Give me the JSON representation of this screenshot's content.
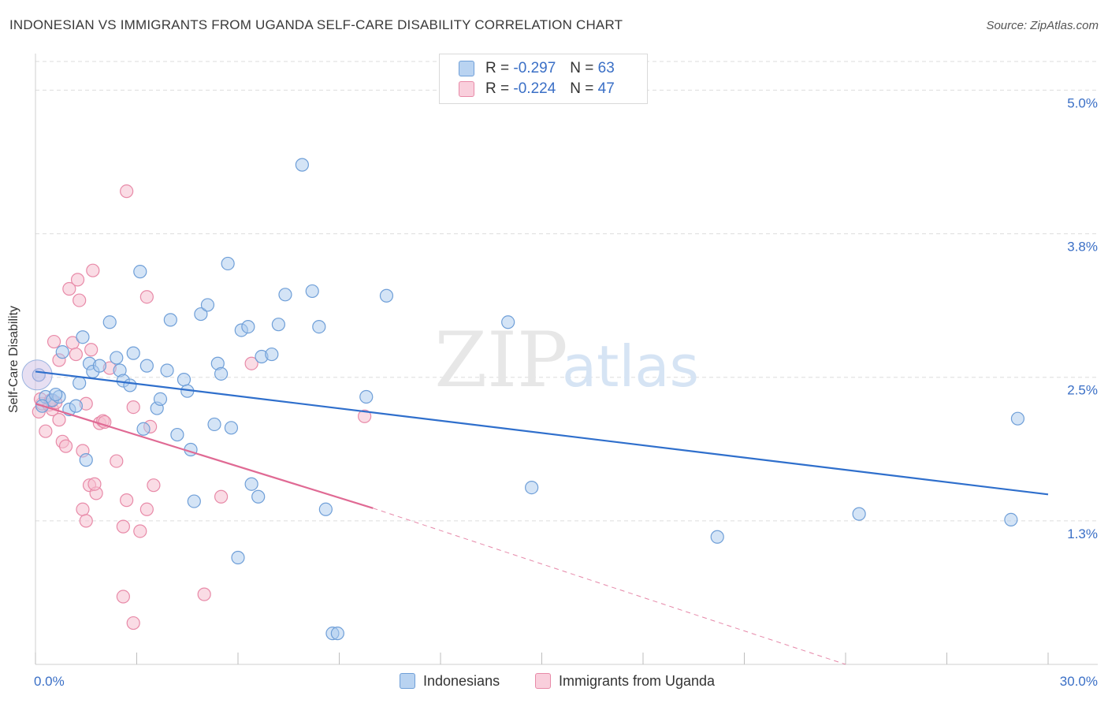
{
  "title": "INDONESIAN VS IMMIGRANTS FROM UGANDA SELF-CARE DISABILITY CORRELATION CHART",
  "source": "Source: ZipAtlas.com",
  "watermark": {
    "zip": "ZIP",
    "atlas": "atlas"
  },
  "colors": {
    "blue_fill": "#a9c9ee",
    "blue_stroke": "#6f9fd8",
    "blue_line": "#2f6fcc",
    "pink_fill": "#f6c0d0",
    "pink_stroke": "#e88aa8",
    "pink_line": "#e06a94",
    "tick_label": "#3a6fc6",
    "grid": "#dddddd"
  },
  "legend": {
    "rows": [
      {
        "r_label": "R =",
        "r_value": "-0.297",
        "n_label": "N =",
        "n_value": "63"
      },
      {
        "r_label": "R =",
        "r_value": "-0.224",
        "n_label": "N =",
        "n_value": "47"
      }
    ]
  },
  "bottom_legend": {
    "indonesians": "Indonesians",
    "uganda": "Immigrants from Uganda"
  },
  "chart_data": {
    "type": "scatter",
    "xlabel": "",
    "ylabel": "Self-Care Disability",
    "xlim": [
      0,
      30
    ],
    "ylim": [
      0,
      5.25
    ],
    "x_tick_labels": [
      {
        "value": 0,
        "label": "0.0%"
      },
      {
        "value": 30,
        "label": "30.0%"
      }
    ],
    "y_tick_labels": [
      {
        "value": 1.25,
        "label": "1.3%"
      },
      {
        "value": 2.5,
        "label": "2.5%"
      },
      {
        "value": 3.75,
        "label": "3.8%"
      },
      {
        "value": 5.0,
        "label": "5.0%"
      }
    ],
    "series": [
      {
        "name": "Indonesians",
        "trend": {
          "x0": 0.0,
          "y0": 2.55,
          "x1": 30.0,
          "y1": 1.48
        },
        "points": [
          [
            0.1,
            2.52
          ],
          [
            0.3,
            2.33
          ],
          [
            0.5,
            2.3
          ],
          [
            0.7,
            2.33
          ],
          [
            0.8,
            2.72
          ],
          [
            1.0,
            2.22
          ],
          [
            1.2,
            2.25
          ],
          [
            1.3,
            2.45
          ],
          [
            1.4,
            2.85
          ],
          [
            1.6,
            2.62
          ],
          [
            1.7,
            2.55
          ],
          [
            1.5,
            1.78
          ],
          [
            2.2,
            2.98
          ],
          [
            2.4,
            2.67
          ],
          [
            2.5,
            2.56
          ],
          [
            2.6,
            2.47
          ],
          [
            2.9,
            2.71
          ],
          [
            3.1,
            3.42
          ],
          [
            3.3,
            2.6
          ],
          [
            3.2,
            2.05
          ],
          [
            3.6,
            2.23
          ],
          [
            3.7,
            2.31
          ],
          [
            3.9,
            2.56
          ],
          [
            4.0,
            3.0
          ],
          [
            4.2,
            2.0
          ],
          [
            4.4,
            2.48
          ],
          [
            4.5,
            2.38
          ],
          [
            4.6,
            1.87
          ],
          [
            4.7,
            1.42
          ],
          [
            4.9,
            3.05
          ],
          [
            5.1,
            3.13
          ],
          [
            5.3,
            2.09
          ],
          [
            5.4,
            2.62
          ],
          [
            5.5,
            2.53
          ],
          [
            5.7,
            3.49
          ],
          [
            5.8,
            2.06
          ],
          [
            6.1,
            2.91
          ],
          [
            6.3,
            2.94
          ],
          [
            6.4,
            1.57
          ],
          [
            6.6,
            1.46
          ],
          [
            6.7,
            2.68
          ],
          [
            7.0,
            2.7
          ],
          [
            7.2,
            2.96
          ],
          [
            7.4,
            3.22
          ],
          [
            7.9,
            4.35
          ],
          [
            8.2,
            3.25
          ],
          [
            8.4,
            2.94
          ],
          [
            8.6,
            1.35
          ],
          [
            8.8,
            0.27
          ],
          [
            8.95,
            0.27
          ],
          [
            6.0,
            0.93
          ],
          [
            9.8,
            2.33
          ],
          [
            10.4,
            3.21
          ],
          [
            14.0,
            2.98
          ],
          [
            14.7,
            1.54
          ],
          [
            24.4,
            1.31
          ],
          [
            20.2,
            1.11
          ],
          [
            29.1,
            2.14
          ],
          [
            28.9,
            1.26
          ],
          [
            0.2,
            2.25
          ],
          [
            0.6,
            2.35
          ],
          [
            1.9,
            2.6
          ],
          [
            2.8,
            2.43
          ]
        ]
      },
      {
        "name": "Immigrants from Uganda",
        "trend": {
          "x0": 0.0,
          "y0": 2.27,
          "x1": 10.0,
          "y1": 1.36
        },
        "trend_dashed_to": {
          "x": 24.0,
          "y": 0.0
        },
        "points": [
          [
            0.1,
            2.2
          ],
          [
            0.2,
            2.27
          ],
          [
            0.3,
            2.03
          ],
          [
            0.4,
            2.26
          ],
          [
            0.5,
            2.22
          ],
          [
            0.55,
            2.81
          ],
          [
            0.6,
            2.28
          ],
          [
            0.7,
            2.65
          ],
          [
            0.8,
            1.94
          ],
          [
            0.9,
            1.9
          ],
          [
            0.7,
            2.13
          ],
          [
            1.0,
            3.27
          ],
          [
            1.1,
            2.8
          ],
          [
            1.2,
            2.7
          ],
          [
            1.25,
            3.35
          ],
          [
            1.3,
            3.17
          ],
          [
            1.4,
            1.86
          ],
          [
            1.5,
            2.27
          ],
          [
            1.6,
            1.56
          ],
          [
            1.7,
            3.43
          ],
          [
            1.65,
            2.74
          ],
          [
            1.8,
            1.49
          ],
          [
            1.9,
            2.1
          ],
          [
            2.0,
            2.12
          ],
          [
            2.2,
            2.58
          ],
          [
            2.4,
            1.77
          ],
          [
            2.6,
            1.2
          ],
          [
            2.7,
            1.43
          ],
          [
            2.9,
            2.24
          ],
          [
            1.4,
            1.35
          ],
          [
            1.5,
            1.25
          ],
          [
            1.75,
            1.57
          ],
          [
            2.7,
            4.12
          ],
          [
            3.4,
            2.07
          ],
          [
            3.5,
            1.56
          ],
          [
            3.3,
            1.35
          ],
          [
            3.1,
            1.16
          ],
          [
            2.6,
            0.59
          ],
          [
            2.9,
            0.36
          ],
          [
            3.3,
            3.2
          ],
          [
            5.0,
            0.61
          ],
          [
            5.5,
            1.46
          ],
          [
            6.4,
            2.62
          ],
          [
            9.75,
            2.16
          ],
          [
            0.15,
            2.31
          ],
          [
            0.45,
            2.3
          ],
          [
            2.05,
            2.11
          ]
        ]
      }
    ]
  }
}
